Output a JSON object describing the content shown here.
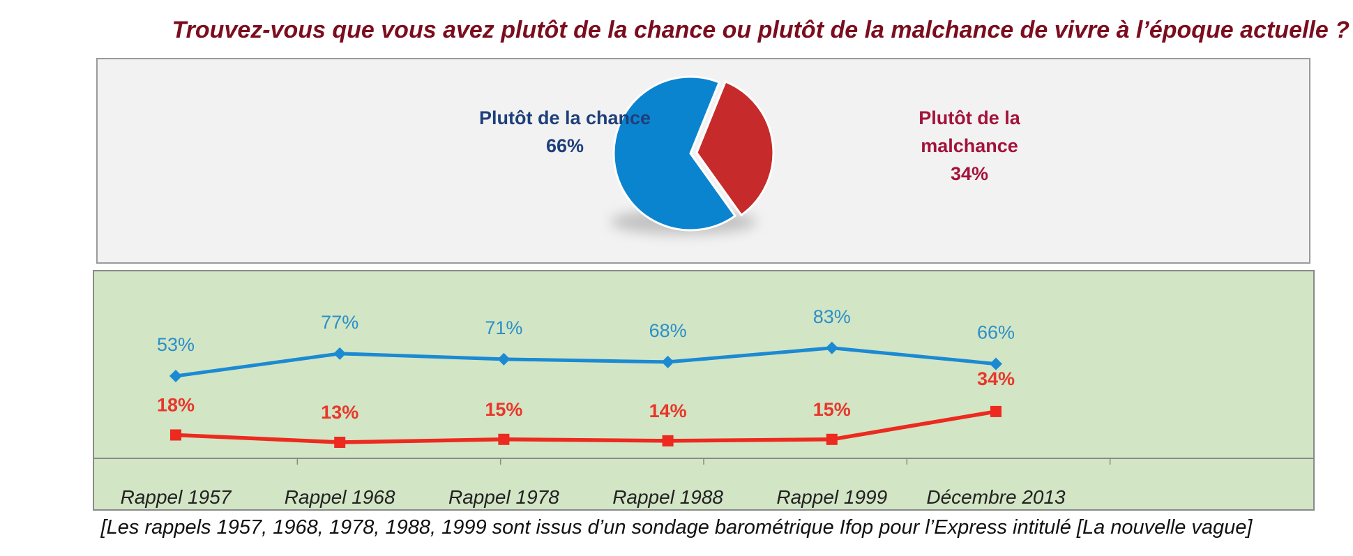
{
  "title": "Trouvez-vous que vous avez plutôt de la chance ou plutôt de la malchance de vivre à l’époque actuelle ?",
  "footnote": "[Les rappels 1957, 1968, 1978, 1988, 1999 sont issus d’un sondage barométrique Ifop pour l’Express intitulé [La nouvelle vague]",
  "colors": {
    "title": "#7b0d1e",
    "pie_chance": "#0b84cf",
    "pie_malchance": "#c62a2a",
    "line_chance": "#1b8ad3",
    "line_malchance": "#ec2a1f",
    "panel_bg": "#d2e5c5"
  },
  "pie_labels": {
    "chance_line1": "Plutôt de la chance",
    "chance_value": "66%",
    "malchance_line1": "Plutôt de la",
    "malchance_line2": "malchance",
    "malchance_value": "34%"
  },
  "chart_data": [
    {
      "type": "pie",
      "slices": [
        {
          "label": "Plutôt de la chance",
          "value": 66
        },
        {
          "label": "Plutôt de la malchance",
          "value": 34
        }
      ]
    },
    {
      "type": "line",
      "categories": [
        "Rappel 1957",
        "Rappel 1968",
        "Rappel 1978",
        "Rappel 1988",
        "Rappel 1999",
        "Décembre 2013"
      ],
      "series": [
        {
          "values": [
            53,
            77,
            71,
            68,
            83,
            66
          ],
          "labels": [
            "53%",
            "77%",
            "71%",
            "68%",
            "83%",
            "66%"
          ],
          "marker": "diamond"
        },
        {
          "values": [
            18,
            13,
            15,
            14,
            15,
            34
          ],
          "labels": [
            "18%",
            "13%",
            "15%",
            "14%",
            "15%",
            "34%"
          ],
          "marker": "square"
        }
      ],
      "ylim": [
        0,
        100
      ],
      "grid": false,
      "legend": "none"
    }
  ]
}
